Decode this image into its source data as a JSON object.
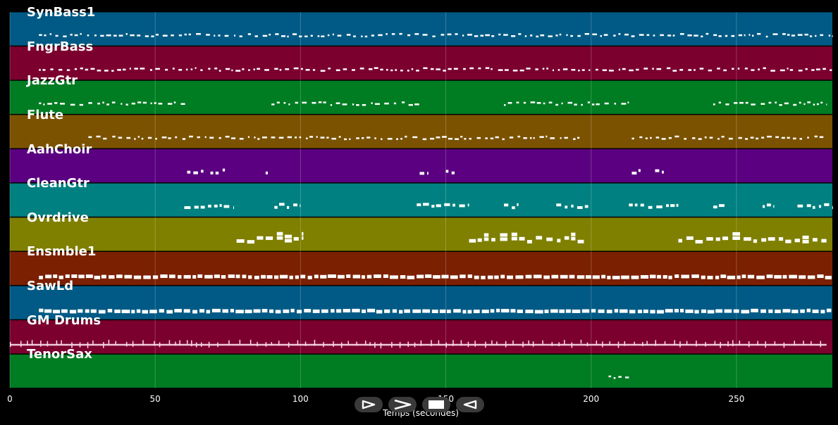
{
  "chart_data": {
    "type": "piano-roll",
    "xlabel": "Temps (secondes)",
    "xlim": [
      0,
      283
    ],
    "xticks": [
      "0",
      "50",
      "100",
      "150",
      "200",
      "250"
    ],
    "tracks": [
      {
        "name": "SynBass1",
        "color": "#005a85",
        "style": "sparse",
        "segments": [
          [
            10,
            283
          ]
        ]
      },
      {
        "name": "FngrBass",
        "color": "#7b002e",
        "style": "sparse",
        "segments": [
          [
            10,
            283
          ]
        ]
      },
      {
        "name": "JazzGtr",
        "color": "#007c22",
        "style": "sparse",
        "segments": [
          [
            10,
            61
          ],
          [
            90,
            141
          ],
          [
            170,
            213
          ],
          [
            242,
            281
          ]
        ]
      },
      {
        "name": "Flute",
        "color": "#7b5200",
        "style": "sparse",
        "segments": [
          [
            27,
            97
          ],
          [
            98,
            157
          ],
          [
            158,
            196
          ],
          [
            214,
            281
          ]
        ]
      },
      {
        "name": "AahChoir",
        "color": "#5a0080",
        "style": "clusters",
        "segments": [
          [
            61,
            67
          ],
          [
            69,
            74
          ],
          [
            88,
            89
          ],
          [
            141,
            144
          ],
          [
            150,
            153
          ],
          [
            214,
            217
          ],
          [
            222,
            225
          ]
        ]
      },
      {
        "name": "CleanGtr",
        "color": "#008080",
        "style": "clusters",
        "segments": [
          [
            60,
            77
          ],
          [
            91,
            100
          ],
          [
            140,
            158
          ],
          [
            170,
            175
          ],
          [
            188,
            199
          ],
          [
            213,
            230
          ],
          [
            242,
            246
          ],
          [
            259,
            263
          ],
          [
            271,
            283
          ]
        ]
      },
      {
        "name": "Ovrdrive",
        "color": "#7f7f00",
        "style": "blocks",
        "segments": [
          [
            78,
            101
          ],
          [
            158,
            198
          ],
          [
            230,
            281
          ]
        ]
      },
      {
        "name": "Ensmble1",
        "color": "#7b2000",
        "style": "dense",
        "segments": [
          [
            10,
            283
          ]
        ]
      },
      {
        "name": "SawLd",
        "color": "#005a85",
        "style": "dense",
        "segments": [
          [
            10,
            283
          ]
        ]
      },
      {
        "name": "GM Drums",
        "color": "#7b002e",
        "style": "line",
        "segments": [
          [
            0,
            281
          ]
        ]
      },
      {
        "name": "TenorSax",
        "color": "#007c22",
        "style": "sparse",
        "segments": [
          [
            206,
            213
          ]
        ]
      }
    ]
  },
  "controls": [
    {
      "name": "play-button",
      "glyph": "play"
    },
    {
      "name": "forward-button",
      "glyph": "forward"
    },
    {
      "name": "stop-button",
      "glyph": "stop"
    },
    {
      "name": "back-button",
      "glyph": "back"
    }
  ]
}
